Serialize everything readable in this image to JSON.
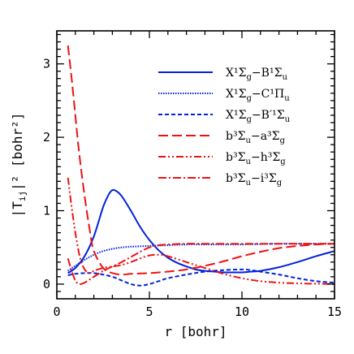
{
  "chart_data": {
    "type": "line",
    "xlabel": "r [bohr]",
    "ylabel": "|T_ij|² [bohr²]",
    "xlim": [
      0,
      15
    ],
    "ylim": [
      -0.2,
      3.45
    ],
    "xticks": [
      0,
      5,
      10,
      15
    ],
    "yticks": [
      0,
      1,
      2,
      3
    ],
    "legend_position": "top-right",
    "series": [
      {
        "name": "X¹Σg−B¹Σu",
        "color": "#0022dd",
        "style": "solid",
        "x": [
          0.6,
          1.0,
          1.5,
          2.0,
          2.5,
          2.8,
          3.0,
          3.2,
          3.5,
          4.0,
          4.5,
          5.0,
          5.5,
          6.0,
          6.5,
          7.0,
          7.5,
          8.0,
          8.5,
          9.0,
          9.5,
          10.0,
          10.5,
          11.0,
          12.0,
          13.0,
          14.0,
          15.0
        ],
        "y": [
          0.15,
          0.22,
          0.38,
          0.65,
          1.05,
          1.22,
          1.28,
          1.27,
          1.2,
          1.0,
          0.78,
          0.6,
          0.46,
          0.36,
          0.29,
          0.24,
          0.2,
          0.18,
          0.17,
          0.16,
          0.16,
          0.16,
          0.17,
          0.18,
          0.23,
          0.3,
          0.38,
          0.45
        ]
      },
      {
        "name": "X¹Σg−C¹Πu",
        "color": "#0022dd",
        "style": "dotted",
        "x": [
          0.6,
          1.0,
          1.5,
          2.0,
          2.5,
          3.0,
          3.5,
          4.0,
          5.0,
          6.0,
          7.0,
          8.0,
          10.0,
          12.0,
          15.0
        ],
        "y": [
          0.18,
          0.25,
          0.33,
          0.4,
          0.45,
          0.48,
          0.5,
          0.51,
          0.52,
          0.53,
          0.54,
          0.54,
          0.54,
          0.55,
          0.55
        ]
      },
      {
        "name": "X¹Σg−B′¹Σu",
        "color": "#0022dd",
        "style": "dashed",
        "x": [
          0.6,
          1.0,
          1.5,
          2.0,
          2.5,
          3.0,
          3.5,
          4.0,
          4.5,
          5.0,
          5.5,
          6.0,
          7.0,
          8.0,
          9.0,
          10.0,
          10.5,
          11.0,
          12.0,
          13.0,
          14.0,
          15.0
        ],
        "y": [
          0.12,
          0.14,
          0.15,
          0.15,
          0.13,
          0.1,
          0.05,
          0.0,
          -0.02,
          0.0,
          0.04,
          0.08,
          0.13,
          0.17,
          0.19,
          0.2,
          0.19,
          0.17,
          0.13,
          0.08,
          0.04,
          0.02
        ]
      },
      {
        "name": "b³Σu−a³Σg",
        "color": "#ee1111",
        "style": "long-dash",
        "x": [
          0.6,
          0.8,
          1.0,
          1.2,
          1.5,
          1.8,
          2.0,
          2.5,
          3.0,
          3.5,
          4.0,
          5.0,
          6.0,
          7.0,
          8.0,
          9.0,
          10.0,
          11.0,
          12.0,
          13.0,
          14.0,
          15.0
        ],
        "y": [
          3.25,
          2.8,
          2.3,
          1.8,
          1.2,
          0.7,
          0.45,
          0.22,
          0.15,
          0.13,
          0.14,
          0.15,
          0.17,
          0.2,
          0.25,
          0.31,
          0.38,
          0.44,
          0.49,
          0.52,
          0.54,
          0.55
        ]
      },
      {
        "name": "b³Σu−h³Σg",
        "color": "#ee1111",
        "style": "dash-dot-dot",
        "x": [
          0.6,
          0.8,
          1.0,
          1.2,
          1.4,
          1.6,
          1.8,
          2.0,
          2.5,
          3.0,
          3.5,
          4.0,
          4.5,
          5.0,
          5.5,
          6.0,
          7.0,
          8.0,
          9.0,
          10.0,
          11.0,
          12.0,
          13.0,
          14.0,
          15.0
        ],
        "y": [
          1.45,
          1.05,
          0.7,
          0.42,
          0.25,
          0.17,
          0.15,
          0.18,
          0.22,
          0.24,
          0.26,
          0.3,
          0.35,
          0.39,
          0.4,
          0.38,
          0.3,
          0.22,
          0.14,
          0.08,
          0.04,
          0.02,
          0.01,
          0.005,
          0.0
        ]
      },
      {
        "name": "b³Σu−i³Σg",
        "color": "#ee1111",
        "style": "dash-dot",
        "x": [
          0.6,
          0.8,
          1.0,
          1.2,
          1.5,
          2.0,
          2.5,
          3.0,
          3.5,
          4.0,
          4.5,
          5.0,
          5.5,
          6.0,
          7.0,
          8.0,
          9.0,
          10.0,
          12.0,
          15.0
        ],
        "y": [
          0.35,
          0.18,
          0.05,
          0.0,
          0.02,
          0.1,
          0.18,
          0.24,
          0.3,
          0.37,
          0.44,
          0.5,
          0.53,
          0.54,
          0.55,
          0.55,
          0.55,
          0.55,
          0.55,
          0.55
        ]
      }
    ]
  }
}
